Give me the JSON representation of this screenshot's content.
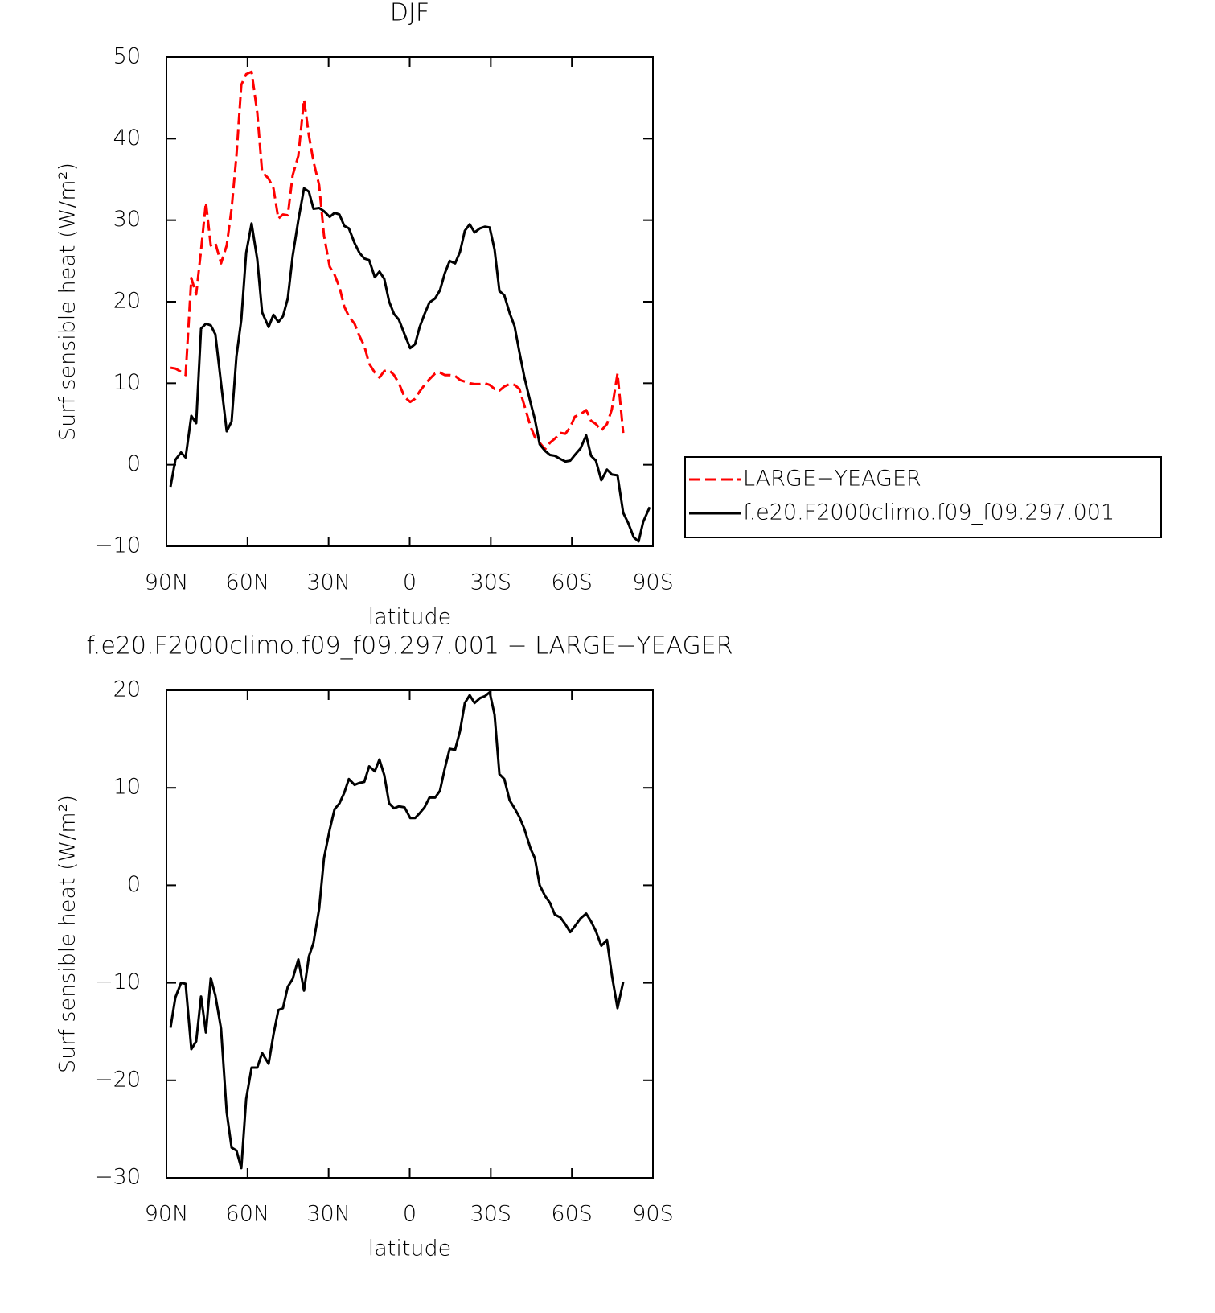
{
  "chart_data": [
    {
      "type": "line",
      "title": "DJF",
      "x_label": "latitude",
      "y_label": "Surf sensible heat (W/m²)",
      "x": [
        88.5,
        86.7,
        84.6,
        82.9,
        80.8,
        79.0,
        77.2,
        75.4,
        73.6,
        71.9,
        69.8,
        67.7,
        65.9,
        64.1,
        62.3,
        60.5,
        58.5,
        56.4,
        54.6,
        52.2,
        50.4,
        48.6,
        46.9,
        45.1,
        43.3,
        41.2,
        39.1,
        37.3,
        35.6,
        33.5,
        31.7,
        29.6,
        27.8,
        26.0,
        24.2,
        22.5,
        20.4,
        18.6,
        16.8,
        15.0,
        12.9,
        11.2,
        9.4,
        7.6,
        5.8,
        4.0,
        1.9,
        -0.2,
        -2.0,
        -3.7,
        -5.5,
        -7.3,
        -9.4,
        -11.2,
        -13.0,
        -14.8,
        -16.8,
        -18.6,
        -20.4,
        -22.2,
        -24.0,
        -26.0,
        -27.8,
        -29.6,
        -31.4,
        -33.2,
        -35.0,
        -37.0,
        -38.8,
        -40.6,
        -42.4,
        -44.8,
        -46.3,
        -48.1,
        -50.1,
        -51.9,
        -53.7,
        -55.8,
        -57.6,
        -59.4,
        -61.1,
        -63.2,
        -65.3,
        -67.1,
        -68.9,
        -70.9,
        -73.0,
        -74.8,
        -76.9,
        -79.0,
        -80.8,
        -82.9,
        -84.7,
        -86.4,
        -88.8
      ],
      "series": [
        {
          "name": "LARGE−YEAGER",
          "color": "#ff0000",
          "dashed": true,
          "values": [
            11.9,
            11.8,
            11.4,
            11.0,
            22.9,
            20.9,
            26.3,
            32.2,
            26.9,
            27.2,
            24.7,
            26.9,
            31.4,
            37.9,
            46.6,
            47.9,
            48.2,
            43.2,
            35.9,
            35.1,
            33.9,
            30.2,
            30.7,
            30.6,
            35.5,
            37.9,
            44.8,
            40.4,
            37.2,
            34.3,
            28.1,
            24.3,
            23.3,
            21.8,
            19.4,
            18.2,
            17.3,
            15.8,
            14.6,
            12.4,
            11.3,
            10.7,
            11.5,
            11.6,
            11.0,
            10.0,
            8.3,
            7.7,
            8.1,
            9.0,
            9.8,
            10.5,
            11.2,
            11.3,
            11.0,
            11.0,
            10.9,
            10.4,
            10.2,
            10.0,
            9.9,
            9.9,
            10.0,
            9.8,
            9.3,
            9.1,
            9.6,
            9.9,
            9.8,
            9.3,
            7.3,
            4.6,
            3.4,
            2.7,
            1.9,
            2.7,
            3.2,
            3.9,
            3.8,
            4.6,
            5.9,
            6.2,
            6.7,
            5.4,
            5.0,
            4.2,
            5.0,
            6.8,
            11.2,
            3.9,
            null,
            null,
            null,
            null,
            null
          ]
        },
        {
          "name": "f.e20.F2000climo.f09_f09.297.001",
          "color": "#000000",
          "dashed": false,
          "values": [
            -2.7,
            0.6,
            1.5,
            0.9,
            6.0,
            5.1,
            16.7,
            17.3,
            17.1,
            16.0,
            10.0,
            4.1,
            5.3,
            13.3,
            17.8,
            26.0,
            29.6,
            25.2,
            18.7,
            16.9,
            18.4,
            17.5,
            18.2,
            20.4,
            25.6,
            30.0,
            33.9,
            33.5,
            31.4,
            31.5,
            31.1,
            30.4,
            30.9,
            30.7,
            29.3,
            29.0,
            27.2,
            26.0,
            25.3,
            25.1,
            23.0,
            23.7,
            22.8,
            20.0,
            18.5,
            17.8,
            16.0,
            14.3,
            14.8,
            16.9,
            18.5,
            19.9,
            20.4,
            21.4,
            23.5,
            25.0,
            24.7,
            26.1,
            28.7,
            29.5,
            28.5,
            29.0,
            29.2,
            29.1,
            26.4,
            21.3,
            20.8,
            18.6,
            17.0,
            13.8,
            10.8,
            7.5,
            5.6,
            2.5,
            1.7,
            1.2,
            1.1,
            0.7,
            0.4,
            0.5,
            1.2,
            2.0,
            3.6,
            1.1,
            0.5,
            -1.9,
            -0.6,
            -1.2,
            -1.3,
            -5.9,
            -7.1,
            -8.9,
            -9.4,
            -7.0,
            -5.2
          ]
        }
      ],
      "xlim": [
        90,
        -90
      ],
      "xticks": [
        {
          "value": 90,
          "label": "90N"
        },
        {
          "value": 60,
          "label": "60N"
        },
        {
          "value": 30,
          "label": "30N"
        },
        0,
        {
          "value": -30,
          "label": "30S"
        },
        {
          "value": -60,
          "label": "60S"
        },
        {
          "value": -90,
          "label": "90S"
        }
      ],
      "ylim": [
        -10,
        50
      ],
      "yticks": [
        {
          "value": -10,
          "label": "−10"
        },
        0,
        10,
        20,
        30,
        40,
        50
      ],
      "legend": "right"
    },
    {
      "type": "line",
      "title": "f.e20.F2000climo.f09_f09.297.001 − LARGE−YEAGER",
      "x_label": "latitude",
      "y_label": "Surf sensible heat (W/m²)",
      "x": [
        88.5,
        86.7,
        84.6,
        82.9,
        80.8,
        79.0,
        77.2,
        75.4,
        73.6,
        71.9,
        69.8,
        67.7,
        65.9,
        64.1,
        62.3,
        60.5,
        58.5,
        56.4,
        54.6,
        52.2,
        50.4,
        48.6,
        46.9,
        45.1,
        43.3,
        41.2,
        39.1,
        37.3,
        35.6,
        33.5,
        31.7,
        29.6,
        27.8,
        26.0,
        24.2,
        22.5,
        20.4,
        18.6,
        16.8,
        15.0,
        12.9,
        11.2,
        9.4,
        7.6,
        5.8,
        4.0,
        1.9,
        -0.2,
        -2.0,
        -3.7,
        -5.5,
        -7.3,
        -9.4,
        -11.2,
        -13.0,
        -14.8,
        -16.8,
        -18.6,
        -20.4,
        -22.2,
        -24.0,
        -26.0,
        -27.8,
        -29.6,
        -31.4,
        -33.2,
        -35.0,
        -37.0,
        -38.8,
        -40.6,
        -42.4,
        -44.8,
        -46.3,
        -48.1,
        -50.1,
        -51.9,
        -53.7,
        -55.8,
        -57.6,
        -59.4,
        -61.1,
        -63.2,
        -65.3,
        -67.1,
        -68.9,
        -70.9,
        -73.0,
        -74.8,
        -76.9,
        -79.0
      ],
      "values": [
        -14.6,
        -11.5,
        -10.0,
        -10.1,
        -16.8,
        -16.0,
        -11.4,
        -15.1,
        -9.5,
        -11.3,
        -14.7,
        -23.3,
        -26.9,
        -27.2,
        -29.0,
        -21.9,
        -18.7,
        -18.7,
        -17.2,
        -18.3,
        -15.3,
        -12.8,
        -12.6,
        -10.4,
        -9.6,
        -7.6,
        -10.8,
        -7.3,
        -5.9,
        -2.4,
        2.8,
        5.7,
        7.8,
        8.4,
        9.5,
        10.9,
        10.3,
        10.5,
        10.6,
        12.2,
        11.7,
        12.9,
        11.3,
        8.4,
        7.9,
        8.1,
        8.0,
        6.9,
        6.9,
        7.4,
        8.0,
        9.0,
        9.0,
        9.7,
        12.0,
        14.0,
        13.9,
        15.8,
        18.7,
        19.5,
        18.7,
        19.2,
        19.4,
        19.8,
        17.5,
        11.4,
        10.9,
        8.7,
        7.9,
        7.0,
        5.8,
        3.7,
        2.8,
        0.0,
        -1.1,
        -1.8,
        -3.0,
        -3.3,
        -4.0,
        -4.8,
        -4.2,
        -3.4,
        -2.9,
        -3.7,
        -4.7,
        -6.2,
        -5.6,
        -9.2,
        -12.6,
        -9.9
      ],
      "color": "#000000",
      "xlim": [
        90,
        -90
      ],
      "xticks": [
        {
          "value": 90,
          "label": "90N"
        },
        {
          "value": 60,
          "label": "60N"
        },
        {
          "value": 30,
          "label": "30N"
        },
        0,
        {
          "value": -30,
          "label": "30S"
        },
        {
          "value": -60,
          "label": "60S"
        },
        {
          "value": -90,
          "label": "90S"
        }
      ],
      "ylim": [
        -30,
        20
      ],
      "yticks": [
        {
          "value": -30,
          "label": "−30"
        },
        {
          "value": -20,
          "label": "−20"
        },
        {
          "value": -10,
          "label": "−10"
        },
        0,
        10,
        20
      ]
    }
  ]
}
